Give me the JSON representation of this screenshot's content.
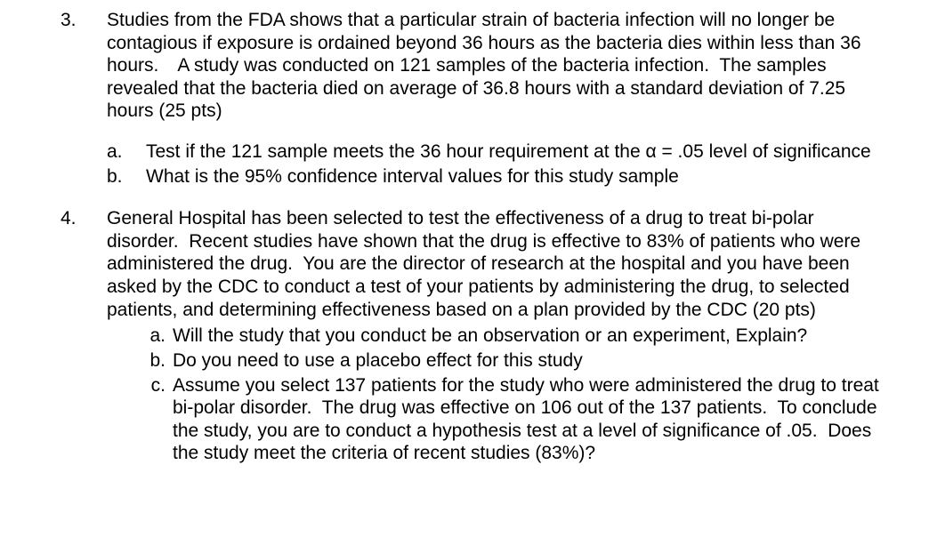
{
  "q3": {
    "number": "3.",
    "text": "Studies from the FDA shows that a particular strain of bacteria infection will no longer be contagious if exposure is ordained beyond 36 hours as the bacteria dies within less than 36 hours. A study was conducted on 121 samples of the bacteria infection.  The samples revealed that the bacteria died on average of 36.8 hours with a standard deviation of 7.25 hours (25 pts)",
    "a_label": "a.",
    "a_text": "Test if the 121 sample meets the 36 hour requirement at the α = .05 level of significance",
    "b_label": "b.",
    "b_text": "What is the 95% confidence interval values for this study sample"
  },
  "q4": {
    "number": "4.",
    "text": "General Hospital has been selected to test the effectiveness of a drug to treat bi-polar disorder.  Recent studies have shown that the drug is effective to 83% of patients who were administered the drug.  You are the director of research at the hospital and you have been asked by the CDC to conduct a test of your patients by administering the drug, to selected patients, and determining effectiveness based on a plan provided by the CDC (20 pts)",
    "a_label": "a.",
    "a_text": "Will the study that you conduct be an observation or an experiment, Explain?",
    "b_label": "b.",
    "b_text": "Do you need to use a placebo effect for this study",
    "c_label": "c.",
    "c_text": "Assume you select 137 patients for the study who were administered the drug to treat bi-polar disorder.  The drug was effective on 106 out of the 137 patients.  To conclude the study, you are to conduct a hypothesis test at a level of significance of .05.  Does the study meet the criteria of recent studies (83%)?"
  }
}
